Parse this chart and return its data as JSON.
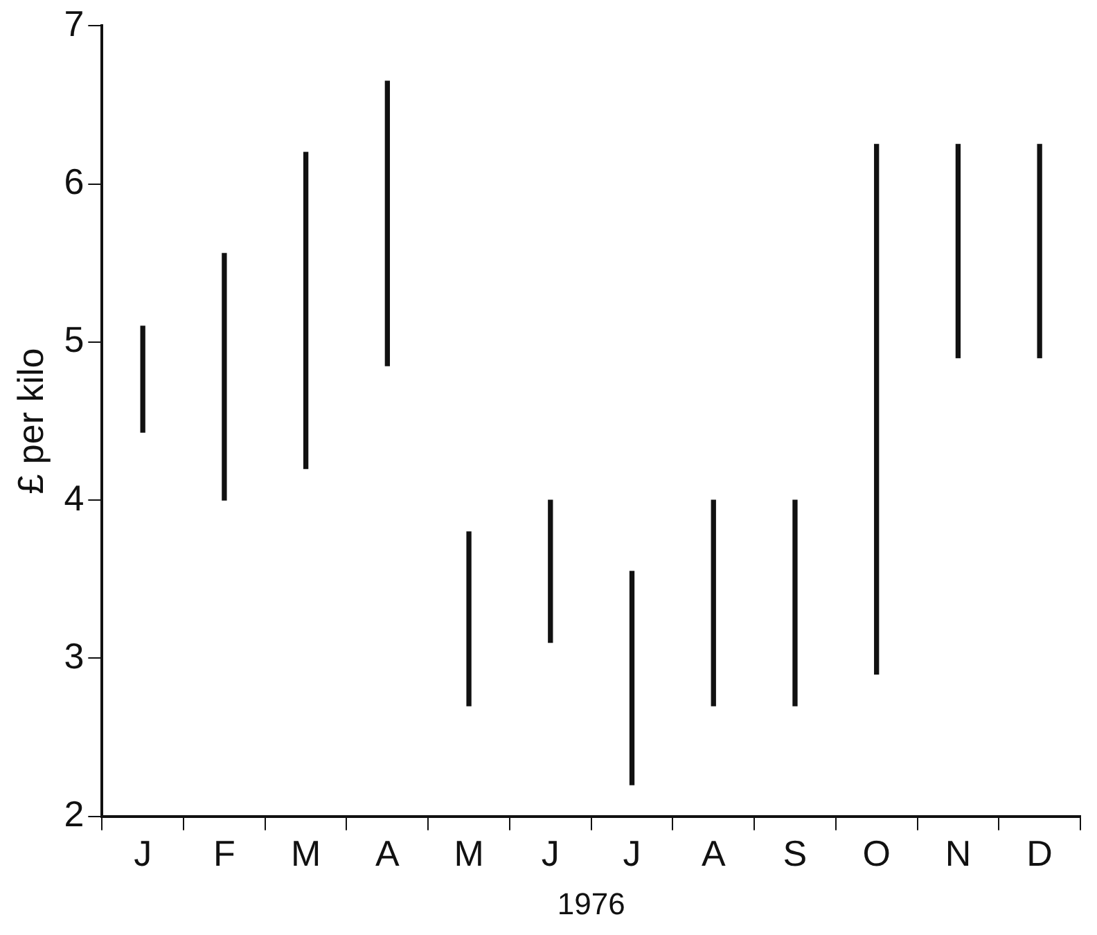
{
  "chart_data": {
    "type": "bar",
    "xlabel": "1976",
    "ylabel": "£ per kilo",
    "categories": [
      "J",
      "F",
      "M",
      "A",
      "M",
      "J",
      "J",
      "A",
      "S",
      "O",
      "N",
      "D"
    ],
    "base": [
      4.43,
      4.0,
      4.2,
      4.85,
      2.7,
      3.1,
      2.2,
      2.7,
      2.7,
      2.9,
      4.9,
      4.9
    ],
    "values": [
      0.67,
      1.56,
      2.0,
      1.8,
      1.1,
      0.9,
      1.35,
      1.3,
      1.3,
      3.35,
      1.35,
      1.35
    ],
    "color": "#111111",
    "ylim": [
      2,
      7
    ],
    "yticks": [
      2,
      3,
      4,
      5,
      6,
      7
    ],
    "grid": false,
    "legend": false
  }
}
